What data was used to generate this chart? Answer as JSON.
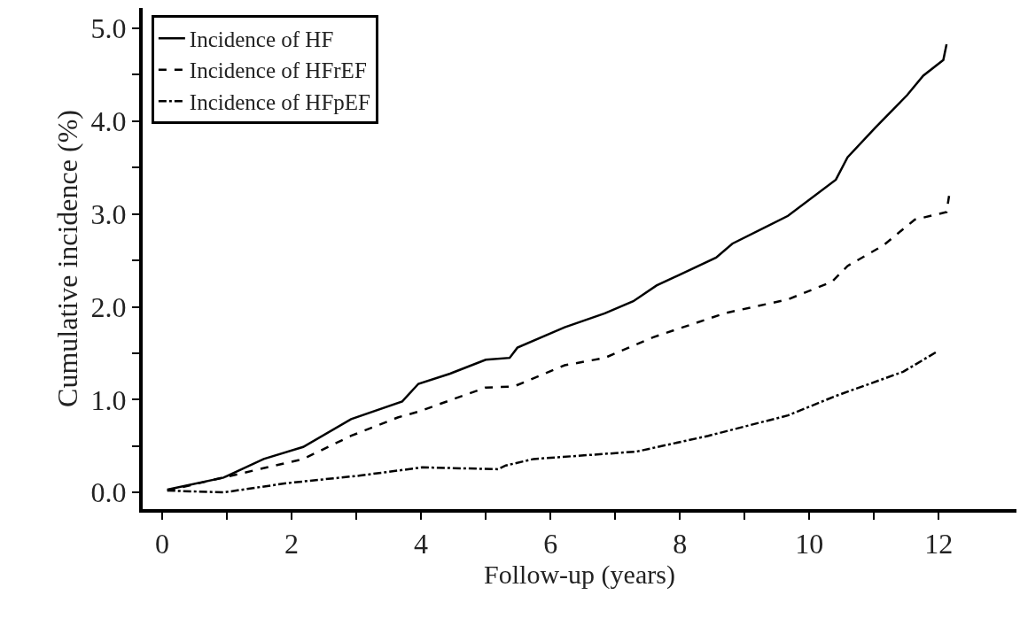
{
  "chart_data": {
    "type": "line",
    "xlabel": "Follow-up (years)",
    "ylabel": "Cumulative incidence (%)",
    "xlim": [
      -0.3,
      13.2
    ],
    "ylim": [
      -0.18,
      5.22
    ],
    "xticks": [
      0,
      {
        "value": 1,
        "label": null
      },
      2,
      {
        "value": 3,
        "label": null
      },
      4,
      {
        "value": 5,
        "label": null
      },
      6,
      {
        "value": 7,
        "label": null
      },
      8,
      {
        "value": 9,
        "label": null
      },
      10,
      {
        "value": 11,
        "label": null
      },
      12
    ],
    "yticks": [
      {
        "value": 0,
        "label": "0.0"
      },
      {
        "value": 0.5,
        "label": null
      },
      {
        "value": 1,
        "label": "1.0"
      },
      {
        "value": 1.5,
        "label": null
      },
      {
        "value": 2,
        "label": "2.0"
      },
      {
        "value": 2.5,
        "label": null
      },
      {
        "value": 3,
        "label": "3.0"
      },
      {
        "value": 3.5,
        "label": null
      },
      {
        "value": 4,
        "label": "4.0"
      },
      {
        "value": 4.5,
        "label": null
      },
      {
        "value": 5,
        "label": "5.0"
      }
    ],
    "grid": false,
    "legend": "top left",
    "marker": "none",
    "series": [
      {
        "name": "Incidence of HF",
        "color": "#000000",
        "line_style": "solid",
        "x": [
          0.08,
          0.95,
          1.57,
          2.18,
          2.92,
          3.71,
          3.96,
          4.45,
          5.0,
          5.37,
          5.49,
          6.22,
          6.84,
          7.28,
          7.64,
          8.56,
          8.81,
          9.67,
          10.41,
          10.59,
          11.02,
          11.51,
          11.76,
          12.07,
          12.12
        ],
        "values": [
          0.03,
          0.16,
          0.36,
          0.49,
          0.79,
          0.98,
          1.17,
          1.28,
          1.43,
          1.45,
          1.56,
          1.78,
          1.93,
          2.06,
          2.23,
          2.53,
          2.68,
          2.98,
          3.37,
          3.61,
          3.93,
          4.28,
          4.49,
          4.66,
          4.83
        ]
      },
      {
        "name": "Incidence of HFrEF",
        "color": "#000000",
        "line_style": "dashed",
        "x": [
          0.08,
          1.5,
          2.18,
          2.92,
          3.65,
          3.96,
          5.0,
          5.43,
          6.22,
          6.84,
          7.58,
          8.69,
          9.67,
          10.35,
          10.59,
          11.14,
          11.63,
          12.12,
          12.16
        ],
        "values": [
          0.02,
          0.25,
          0.36,
          0.61,
          0.81,
          0.87,
          1.13,
          1.14,
          1.37,
          1.45,
          1.67,
          1.93,
          2.08,
          2.27,
          2.44,
          2.66,
          2.94,
          3.02,
          3.2
        ]
      },
      {
        "name": "Incidence of HFpEF",
        "color": "#000000",
        "line_style": "dashdot",
        "x": [
          0.08,
          0.95,
          1.93,
          3.04,
          4.02,
          5.19,
          5.31,
          5.74,
          7.33,
          8.44,
          9.67,
          10.41,
          11.45,
          11.98
        ],
        "values": [
          0.02,
          0.0,
          0.1,
          0.18,
          0.27,
          0.25,
          0.29,
          0.36,
          0.44,
          0.61,
          0.83,
          1.04,
          1.3,
          1.52
        ]
      }
    ]
  }
}
